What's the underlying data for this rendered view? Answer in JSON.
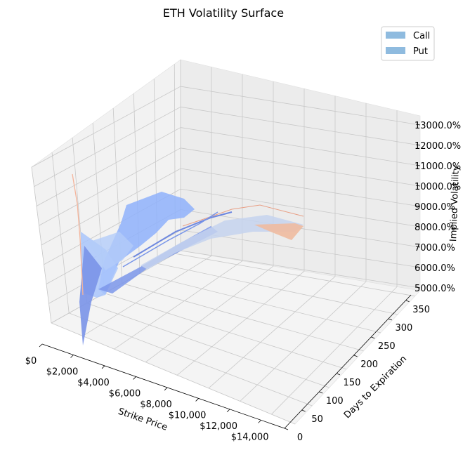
{
  "chart_data": {
    "type": "surface3d",
    "title": "ETH Volatility Surface",
    "xlabel": "Strike Price",
    "ylabel": "Days to Expiration",
    "zlabel": "Implied Volatility",
    "x_ticks": [
      "$0",
      "$2,000",
      "$4,000",
      "$6,000",
      "$8,000",
      "$10,000",
      "$12,000",
      "$14,000"
    ],
    "y_ticks": [
      "0",
      "50",
      "100",
      "150",
      "200",
      "250",
      "300",
      "350"
    ],
    "z_ticks": [
      "5000.0%",
      "6000.0%",
      "7000.0%",
      "8000.0%",
      "9000.0%",
      "10000.0%",
      "11000.0%",
      "12000.0%",
      "13000.0%"
    ],
    "xlim": [
      0,
      15500
    ],
    "ylim": [
      0,
      365
    ],
    "zlim": [
      5000,
      13000
    ],
    "grid": true,
    "legend_position": "top-right",
    "series": [
      {
        "name": "Call",
        "color": "#8fbbdf",
        "colormap": "coolwarm"
      },
      {
        "name": "Put",
        "color": "#8fbbdf",
        "colormap": "coolwarm"
      }
    ]
  }
}
